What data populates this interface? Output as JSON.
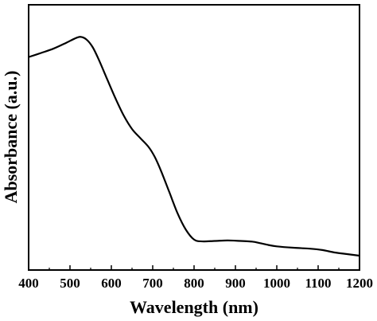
{
  "chart_data": {
    "type": "line",
    "title": "",
    "xlabel": "Wavelength (nm)",
    "ylabel": "Absorbance (a.u.)",
    "xlim": [
      400,
      1200
    ],
    "ylim": [
      0,
      1
    ],
    "x_ticks": [
      400,
      500,
      600,
      700,
      800,
      900,
      1000,
      1100,
      1200
    ],
    "x_tick_labels": [
      "400",
      "500",
      "600",
      "700",
      "800",
      "900",
      "1000",
      "1100",
      "1200"
    ],
    "y_tick_labels_shown": false,
    "grid": false,
    "legend": "none",
    "line_color": "#000000",
    "series": [
      {
        "x": [
          400,
          430,
          460,
          490,
          510,
          525,
          540,
          555,
          570,
          590,
          610,
          630,
          650,
          670,
          690,
          705,
          720,
          740,
          760,
          780,
          800,
          820,
          850,
          880,
          900,
          940,
          960,
          980,
          1000,
          1040,
          1080,
          1110,
          1140,
          1170,
          1200
        ],
        "y": [
          0.875,
          0.893,
          0.912,
          0.937,
          0.955,
          0.964,
          0.952,
          0.918,
          0.862,
          0.777,
          0.693,
          0.617,
          0.558,
          0.518,
          0.479,
          0.435,
          0.374,
          0.281,
          0.187,
          0.115,
          0.071,
          0.063,
          0.065,
          0.067,
          0.066,
          0.062,
          0.055,
          0.047,
          0.041,
          0.035,
          0.031,
          0.025,
          0.014,
          0.007,
          0.0
        ]
      }
    ]
  }
}
